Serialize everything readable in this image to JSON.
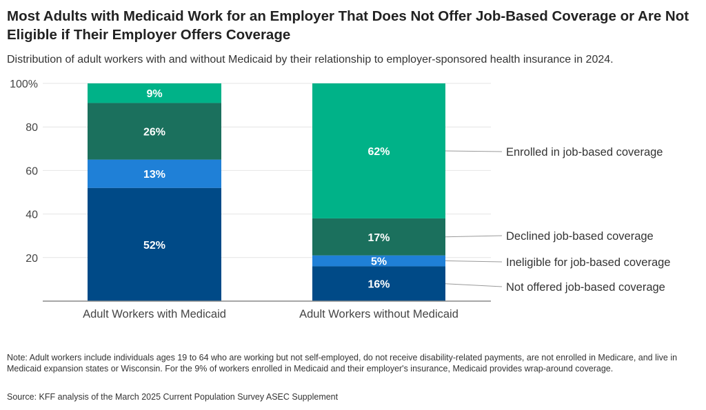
{
  "title": "Most Adults with Medicaid Work for an Employer That Does Not Offer Job-Based Coverage or Are Not Eligible if Their Employer Offers Coverage",
  "subtitle": "Distribution of adult workers with and without Medicaid by their relationship to employer-sponsored health insurance in 2024.",
  "note": "Note: Adult workers include individuals ages 19 to 64 who are working but not self-employed, do not receive disability-related payments, are not enrolled in Medicare, and live in Medicaid expansion states or Wisconsin. For the 9% of workers enrolled in Medicaid and their employer's insurance, Medicaid provides wrap-around coverage.",
  "source": "Source: KFF analysis of the March 2025 Current Population Survey ASEC Supplement",
  "chart_data": {
    "type": "bar",
    "stacked": true,
    "categories": [
      "Adult Workers with Medicaid",
      "Adult Workers without Medicaid"
    ],
    "series": [
      {
        "name": "Not offered job-based coverage",
        "color": "#004A87",
        "values": [
          52,
          16
        ],
        "labels": [
          "52%",
          "16%"
        ]
      },
      {
        "name": "Ineligible for job-based coverage",
        "color": "#1F80D7",
        "values": [
          13,
          5
        ],
        "labels": [
          "13%",
          "5%"
        ]
      },
      {
        "name": "Declined job-based coverage",
        "color": "#1B705D",
        "values": [
          26,
          17
        ],
        "labels": [
          "26%",
          "17%"
        ]
      },
      {
        "name": "Enrolled in job-based coverage",
        "color": "#00B288",
        "values": [
          9,
          62
        ],
        "labels": [
          "9%",
          "62%"
        ]
      }
    ],
    "yticks": [
      "20",
      "40",
      "60",
      "80",
      "100%"
    ],
    "ytick_values": [
      20,
      40,
      60,
      80,
      100
    ],
    "ylim": [
      0,
      100
    ],
    "grid": true,
    "legend": "right, direct labels on second bar"
  }
}
